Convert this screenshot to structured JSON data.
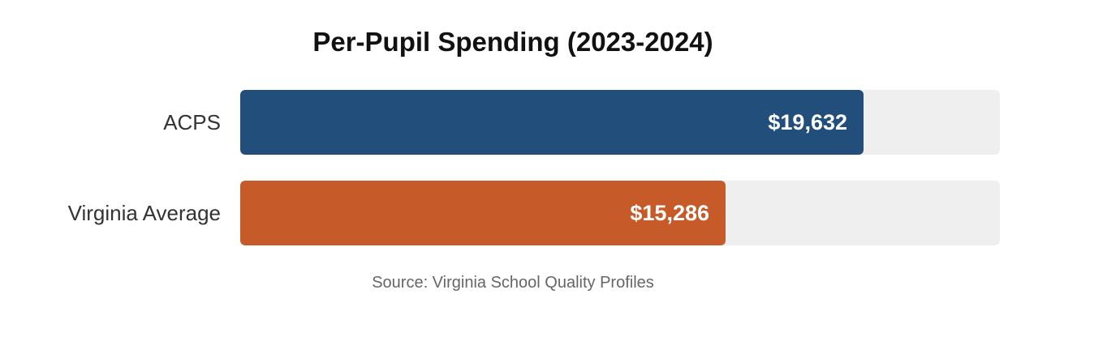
{
  "colors": {
    "acps": "#224e7c",
    "virginia": "#c65b29",
    "track": "#efefef"
  },
  "source": "Source: Virginia School Quality Profiles",
  "chart_data": {
    "type": "bar",
    "orientation": "horizontal",
    "title": "Per-Pupil Spending (2023-2024)",
    "categories": [
      "ACPS",
      "Virginia Average"
    ],
    "values": [
      19632,
      15286
    ],
    "value_labels": [
      "$19,632",
      "$15,286"
    ],
    "bar_colors": [
      "#224e7c",
      "#c65b29"
    ],
    "xlim": [
      0,
      23932
    ],
    "grid": false,
    "legend": "none"
  }
}
